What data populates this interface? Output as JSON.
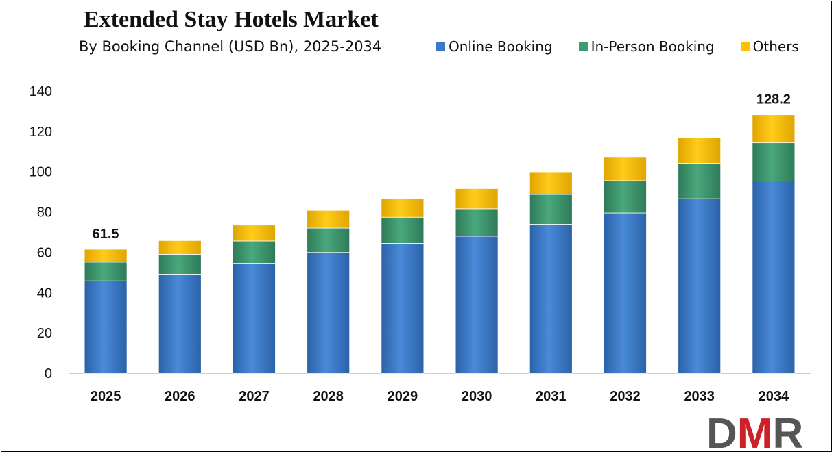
{
  "chart_data": {
    "type": "bar",
    "stacked": true,
    "title": "Extended Stay Hotels Market",
    "subtitle": "By Booking Channel (USD Bn), 2025-2034",
    "categories": [
      "2025",
      "2026",
      "2027",
      "2028",
      "2029",
      "2030",
      "2031",
      "2032",
      "2033",
      "2034"
    ],
    "series": [
      {
        "name": "Online Booking",
        "color": "#3a7bc8",
        "values": [
          45.8,
          49.1,
          54.5,
          59.9,
          64.4,
          68.0,
          73.9,
          79.5,
          86.6,
          95.3
        ]
      },
      {
        "name": "In-Person Booking",
        "color": "#3f9a72",
        "values": [
          9.3,
          9.9,
          11.1,
          12.1,
          13.0,
          13.6,
          14.8,
          16.0,
          17.5,
          19.0
        ]
      },
      {
        "name": "Others",
        "color": "#ffc000",
        "values": [
          6.4,
          6.8,
          7.9,
          8.8,
          9.4,
          10.0,
          11.2,
          11.6,
          12.7,
          13.9
        ]
      }
    ],
    "data_labels": [
      {
        "category": "2025",
        "text": "61.5"
      },
      {
        "category": "2034",
        "text": "128.2"
      }
    ],
    "ylim": [
      0,
      140
    ],
    "yticks": [
      0,
      20,
      40,
      60,
      80,
      100,
      120,
      140
    ],
    "grid": false,
    "legend_position": "top-right"
  },
  "logo": {
    "text": "DMR",
    "colors": [
      "#555555",
      "#cc2127",
      "#555555"
    ]
  }
}
